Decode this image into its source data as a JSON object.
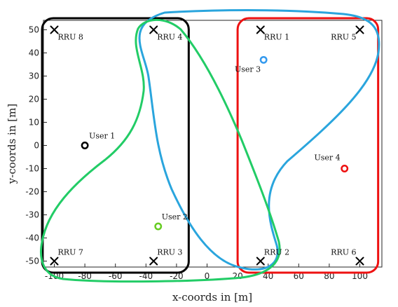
{
  "chart_data": {
    "type": "scatter",
    "xlabel": "x-coords in [m]",
    "ylabel": "y-coords in [m]",
    "xlim": [
      -105,
      105
    ],
    "ylim": [
      -53,
      53
    ],
    "xticks": [
      -100,
      -80,
      -60,
      -40,
      -20,
      0,
      20,
      40,
      60,
      80,
      100
    ],
    "yticks": [
      -50,
      -40,
      -30,
      -20,
      -10,
      0,
      10,
      20,
      30,
      40,
      50
    ],
    "grid": false,
    "rrus": [
      {
        "label": "RRU 1",
        "x": 35,
        "y": 50
      },
      {
        "label": "RRU 2",
        "x": 35,
        "y": -50
      },
      {
        "label": "RRU 3",
        "x": -35,
        "y": -50
      },
      {
        "label": "RRU 4",
        "x": -35,
        "y": 50
      },
      {
        "label": "RRU 5",
        "x": 100,
        "y": 50
      },
      {
        "label": "RRU 6",
        "x": 100,
        "y": -50
      },
      {
        "label": "RRU 7",
        "x": -100,
        "y": -50
      },
      {
        "label": "RRU 8",
        "x": -100,
        "y": 50
      }
    ],
    "users": [
      {
        "label": "User 1",
        "x": -80,
        "y": 0,
        "color": "#000000"
      },
      {
        "label": "User 2",
        "x": -32,
        "y": -35,
        "color": "#66cc22"
      },
      {
        "label": "User 3",
        "x": 37,
        "y": 37,
        "color": "#3399ee"
      },
      {
        "label": "User 4",
        "x": 90,
        "y": -10,
        "color": "#ee1111"
      }
    ],
    "clusters": [
      {
        "color": "#000000",
        "shape": "rounded-rect",
        "x_range": [
          -108,
          -12
        ],
        "y_range": [
          -55,
          55
        ]
      },
      {
        "color": "#ee1111",
        "shape": "rounded-rect",
        "x_range": [
          20,
          112
        ],
        "y_range": [
          -55,
          55
        ]
      },
      {
        "color": "#2aa5dd",
        "shape": "freeform"
      },
      {
        "color": "#22cc66",
        "shape": "freeform"
      }
    ]
  }
}
